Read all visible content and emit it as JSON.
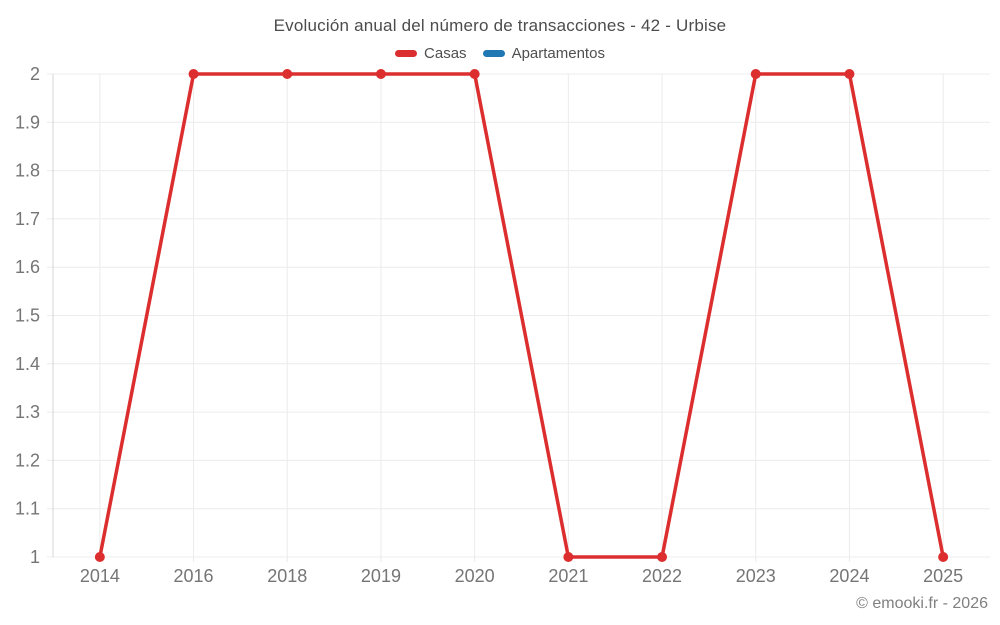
{
  "chart_data": {
    "type": "line",
    "title": "Evolución anual del número de transacciones - 42 - Urbise",
    "categories": [
      "2014",
      "2016",
      "2018",
      "2019",
      "2020",
      "2021",
      "2022",
      "2023",
      "2024",
      "2025"
    ],
    "series": [
      {
        "name": "Casas",
        "color": "#dc2e2e",
        "values": [
          1,
          2,
          2,
          2,
          2,
          1,
          1,
          2,
          2,
          1
        ]
      },
      {
        "name": "Apartamentos",
        "color": "#1f77b4",
        "values": []
      }
    ],
    "xlabel": "",
    "ylabel": "",
    "ylim": [
      1,
      2
    ],
    "y_ticks": [
      "1",
      "1.1",
      "1.2",
      "1.3",
      "1.4",
      "1.5",
      "1.6",
      "1.7",
      "1.8",
      "1.9",
      "2"
    ],
    "grid": true,
    "legend_position": "top",
    "grid_color": "#ececec",
    "axis_color": "#d6d6d6",
    "tick_label_color": "#757575",
    "point_radius": 5,
    "line_width": 3.5
  },
  "footer": {
    "copyright": "© emooki.fr - 2026"
  }
}
